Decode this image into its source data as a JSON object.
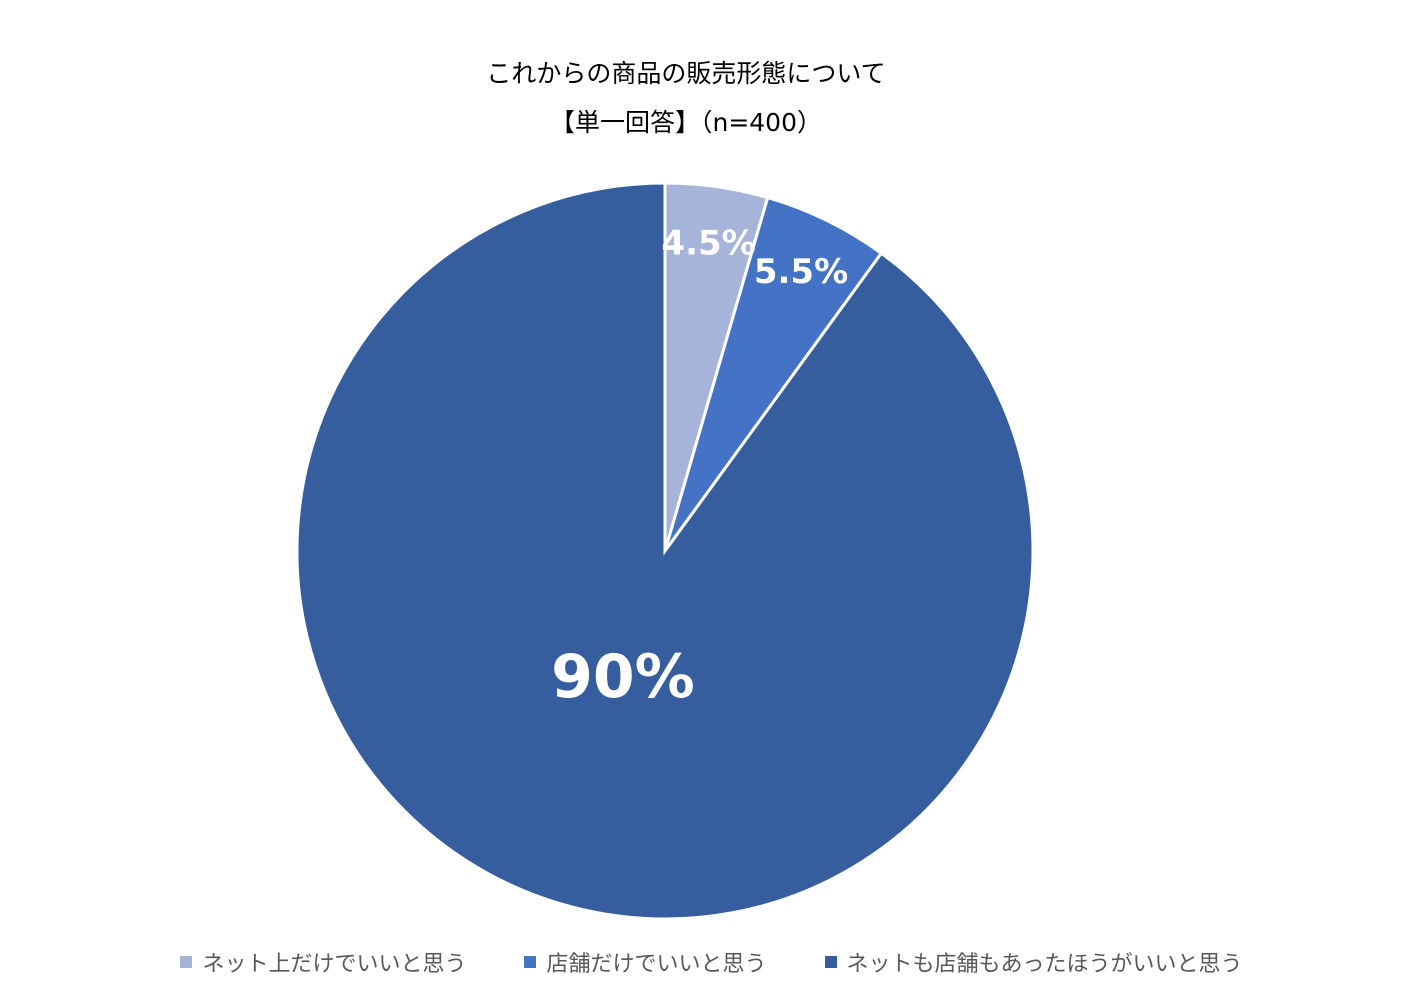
{
  "chart_data": {
    "type": "pie",
    "title": "これからの商品の販売形態について",
    "subtitle": "【単一回答】（n=400）",
    "categories": [
      "ネット上だけでいいと思う",
      "店舗だけでいいと思う",
      "ネットも店舗もあったほうがいいと思う"
    ],
    "values": [
      4.5,
      5.5,
      90
    ],
    "value_labels": [
      "4.5%",
      "5.5%",
      "90%"
    ],
    "colors": [
      "#a6b4d9",
      "#4472c4",
      "#365e9f"
    ],
    "legend": "bottom"
  }
}
